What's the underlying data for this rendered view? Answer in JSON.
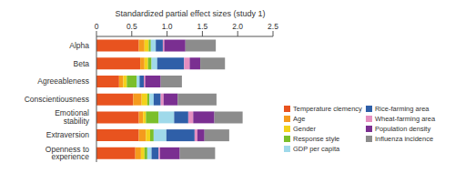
{
  "chart_data": {
    "type": "bar",
    "orientation": "horizontal",
    "stacked": true,
    "title": "Standardized partial effect sizes (study 1)",
    "categories": [
      "Alpha",
      "Beta",
      "Agreeableness",
      "Conscientiousness",
      "Emotional stability",
      "Extraversion",
      "Openness to experience"
    ],
    "xlim": [
      0,
      2.5
    ],
    "xticks": [
      0,
      0.5,
      {
        "value": 1,
        "label": "1.0"
      },
      1.5,
      {
        "value": 2,
        "label": "2.0"
      },
      2.5
    ],
    "grid": false,
    "legend": "right",
    "series": [
      {
        "name": "Temperature clemency",
        "color": "#e8531f",
        "values": [
          0.6,
          0.62,
          0.32,
          0.52,
          0.6,
          0.6,
          0.55
        ]
      },
      {
        "name": "Age",
        "color": "#f59b1d",
        "values": [
          0.08,
          0.06,
          0.06,
          0.12,
          0.06,
          0.1,
          0.08
        ]
      },
      {
        "name": "Gender",
        "color": "#f2d21b",
        "values": [
          0.06,
          0.05,
          0.05,
          0.08,
          0.04,
          0.06,
          0.05
        ]
      },
      {
        "name": "Response style",
        "color": "#7bbf2a",
        "values": [
          0.03,
          0.05,
          0.14,
          0.03,
          0.18,
          0.05,
          0.04
        ]
      },
      {
        "name": "GDP per capita",
        "color": "#9fd9ea",
        "values": [
          0.07,
          0.08,
          0.04,
          0.06,
          0.22,
          0.18,
          0.06
        ]
      },
      {
        "name": "Rice-farming area",
        "color": "#2f5fa8",
        "values": [
          0.1,
          0.38,
          0.06,
          0.1,
          0.2,
          0.4,
          0.1
        ]
      },
      {
        "name": "Wheat-farming area",
        "color": "#e58ec0",
        "values": [
          0.02,
          0.08,
          0.02,
          0.04,
          0.07,
          0.04,
          0.02
        ]
      },
      {
        "name": "Population density",
        "color": "#7a2f91",
        "values": [
          0.3,
          0.15,
          0.22,
          0.2,
          0.3,
          0.1,
          0.28
        ]
      },
      {
        "name": "Influenza incidence",
        "color": "#8c8c8c",
        "values": [
          0.43,
          0.35,
          0.3,
          0.55,
          0.4,
          0.35,
          0.5
        ]
      }
    ]
  }
}
